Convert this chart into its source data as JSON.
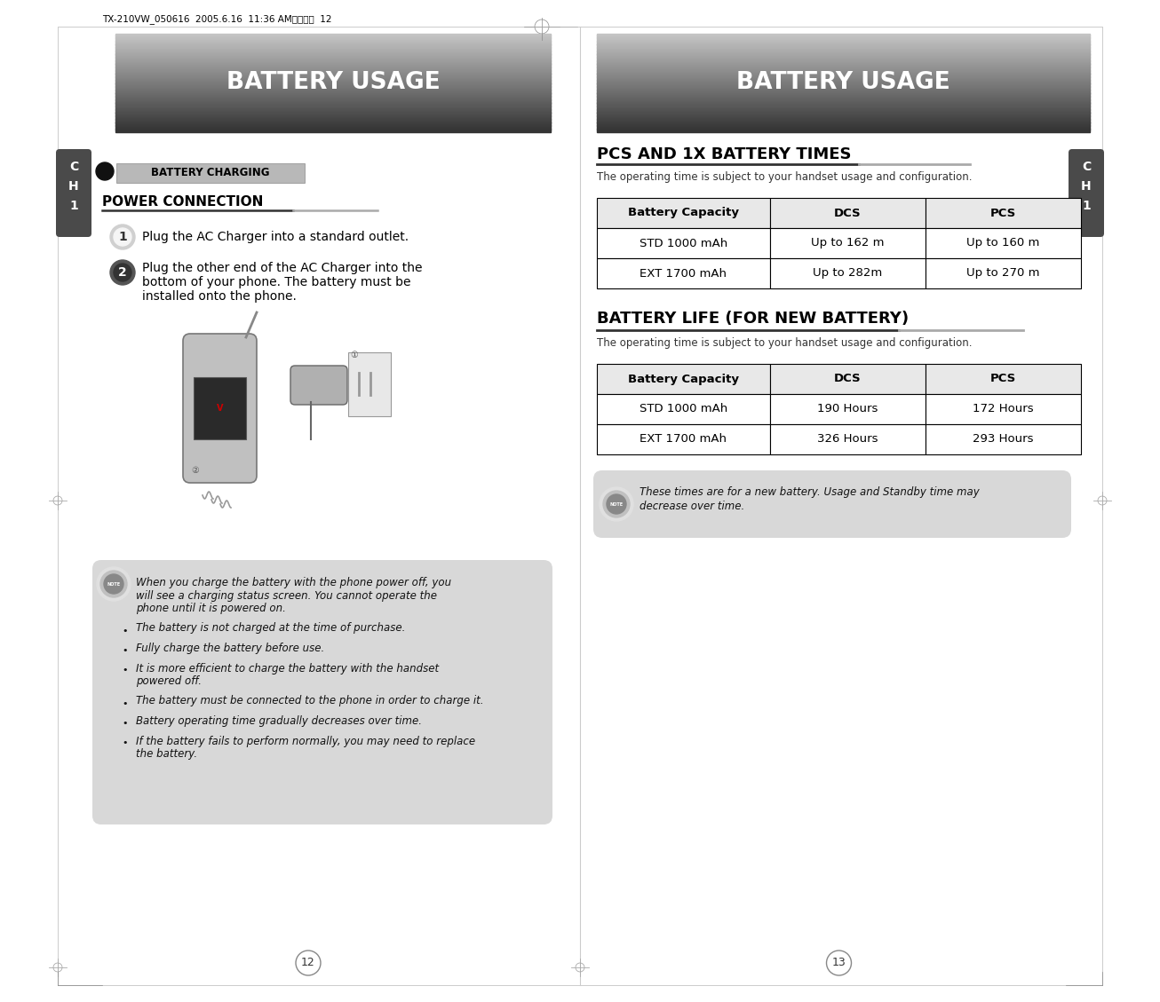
{
  "page_bg": "#ffffff",
  "header_text": "BATTERY USAGE",
  "top_bar_text": "TX-210VW_050616  2005.6.16  11:36 AMペイジ  12",
  "left_page": {
    "ch_tab_bg": "#4a4a4a",
    "section_title": "BATTERY CHARGING",
    "section_title_bg": "#b8b8b8",
    "subsection_title": "POWER CONNECTION",
    "step1_text": "Plug the AC Charger into a standard outlet.",
    "step2_lines": [
      "Plug the other end of the AC Charger into the",
      "bottom of your phone. The battery must be",
      "installed onto the phone."
    ],
    "note_bullets": [
      [
        "When you charge the battery with the phone power off, you",
        "will see a charging status screen. You cannot operate the",
        "phone until it is powered on."
      ],
      [
        "The battery is not charged at the time of purchase."
      ],
      [
        "Fully charge the battery before use."
      ],
      [
        "It is more efficient to charge the battery with the handset",
        "powered off."
      ],
      [
        "The battery must be connected to the phone in order to charge it."
      ],
      [
        "Battery operating time gradually decreases over time."
      ],
      [
        "If the battery fails to perform normally, you may need to replace",
        "the battery."
      ]
    ],
    "page_number": "12"
  },
  "right_page": {
    "ch_tab_bg": "#4a4a4a",
    "section1_title": "PCS AND 1X BATTERY TIMES",
    "section1_subtitle": "The operating time is subject to your handset usage and configuration.",
    "table1_headers": [
      "Battery Capacity",
      "DCS",
      "PCS"
    ],
    "table1_rows": [
      [
        "STD 1000 mAh",
        "Up to 162 m",
        "Up to 160 m"
      ],
      [
        "EXT 1700 mAh",
        "Up to 282m",
        "Up to 270 m"
      ]
    ],
    "section2_title": "BATTERY LIFE (FOR NEW BATTERY)",
    "section2_subtitle": "The operating time is subject to your handset usage and configuration.",
    "table2_headers": [
      "Battery Capacity",
      "DCS",
      "PCS"
    ],
    "table2_rows": [
      [
        "STD 1000 mAh",
        "190 Hours",
        "172 Hours"
      ],
      [
        "EXT 1700 mAh",
        "326 Hours",
        "293 Hours"
      ]
    ],
    "note_line1": "These times are for a new battery. Usage and Standby time may",
    "note_line2": "decrease over time.",
    "page_number": "13"
  }
}
